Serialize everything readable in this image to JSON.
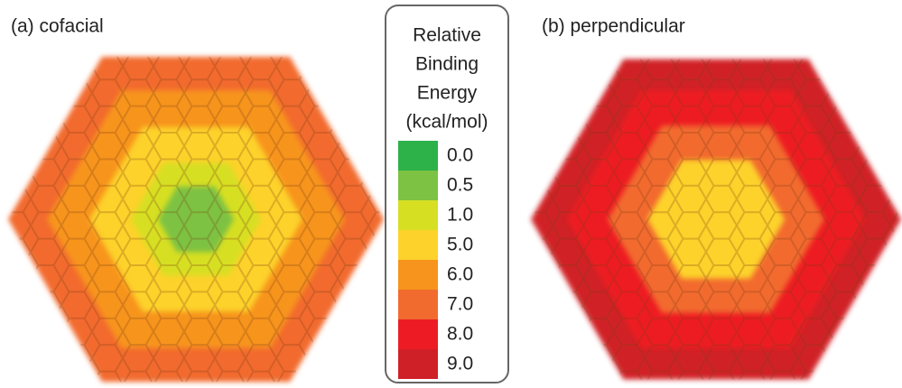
{
  "panels": [
    {
      "title": "(a) cofacial"
    },
    {
      "title": "(b) perpendicular"
    }
  ],
  "legend": {
    "title": [
      "Relative",
      "Binding",
      "Energy",
      "(kcal/mol)"
    ],
    "entries": [
      {
        "label": "0.0",
        "color": "#2db24a"
      },
      {
        "label": "0.5",
        "color": "#7dc242"
      },
      {
        "label": "1.0",
        "color": "#d7df23"
      },
      {
        "label": "5.0",
        "color": "#fdd22b"
      },
      {
        "label": "6.0",
        "color": "#f7941d"
      },
      {
        "label": "7.0",
        "color": "#f26b2e"
      },
      {
        "label": "8.0",
        "color": "#ed1c24"
      },
      {
        "label": "9.0",
        "color": "#d02027"
      }
    ]
  }
}
